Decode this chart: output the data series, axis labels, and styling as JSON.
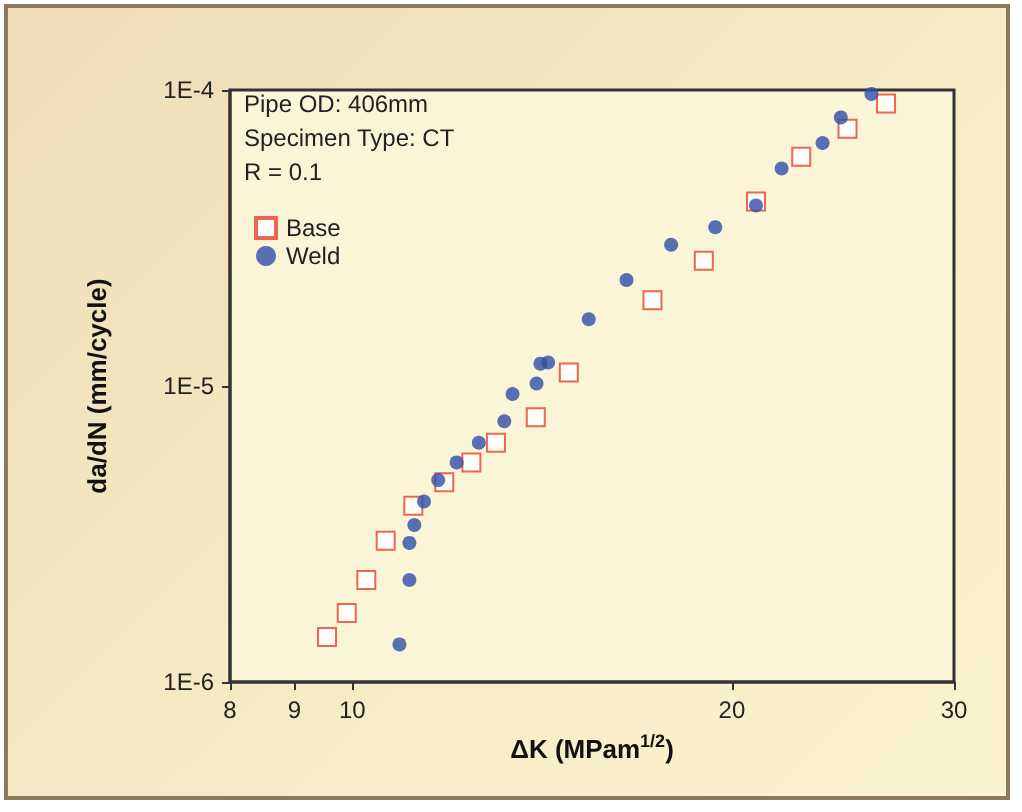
{
  "chart_data": {
    "type": "scatter",
    "xlabel": "ΔK (MPam$^{1/2}$)",
    "ylabel": "da/dN (mm/cycle)",
    "annotations": [
      "Pipe OD: 406mm",
      "Specimen Type: CT",
      "R = 0.1"
    ],
    "log": "xy",
    "xlim": [
      8,
      30
    ],
    "xticks": [
      8,
      9,
      10,
      20,
      30
    ],
    "ylim": [
      1e-06,
      0.0001
    ],
    "yticks": [
      {
        "value": 1e-06,
        "label": "1E-6"
      },
      {
        "value": 1e-05,
        "label": "1E-5"
      },
      {
        "value": 0.0001,
        "label": "1E-4"
      }
    ],
    "grid": false,
    "legend": "top left",
    "series": [
      {
        "name": "Base",
        "color": "#e8412c",
        "marker": "square",
        "x": [
          9.55,
          9.9,
          10.26,
          10.63,
          11.18,
          11.83,
          12.43,
          13.0,
          13.98,
          14.85,
          17.3,
          19.0,
          20.9,
          22.7,
          24.7,
          26.5
        ],
        "values": [
          1.42e-06,
          1.71e-06,
          2.21e-06,
          3e-06,
          3.94e-06,
          4.73e-06,
          5.52e-06,
          6.43e-06,
          7.84e-06,
          1.11e-05,
          1.95e-05,
          2.65e-05,
          4.2e-05,
          5.95e-05,
          7.4e-05,
          9e-05
        ]
      },
      {
        "name": "Weld",
        "color": "#2f4fa8",
        "marker": "circle",
        "x": [
          10.9,
          11.1,
          11.1,
          11.2,
          11.4,
          11.7,
          12.1,
          12.6,
          13.2,
          13.4,
          14.0,
          14.3,
          14.1,
          15.4,
          16.5,
          17.9,
          19.4,
          20.9,
          21.9,
          23.6,
          24.4,
          25.8
        ],
        "values": [
          1.34e-06,
          2.21e-06,
          2.95e-06,
          3.39e-06,
          4.07e-06,
          4.81e-06,
          5.52e-06,
          6.43e-06,
          7.6e-06,
          9.4e-06,
          1.02e-05,
          1.2e-05,
          1.19e-05,
          1.68e-05,
          2.28e-05,
          3e-05,
          3.44e-05,
          4.07e-05,
          5.43e-05,
          6.62e-05,
          8.08e-05,
          9.7e-05
        ]
      }
    ]
  }
}
